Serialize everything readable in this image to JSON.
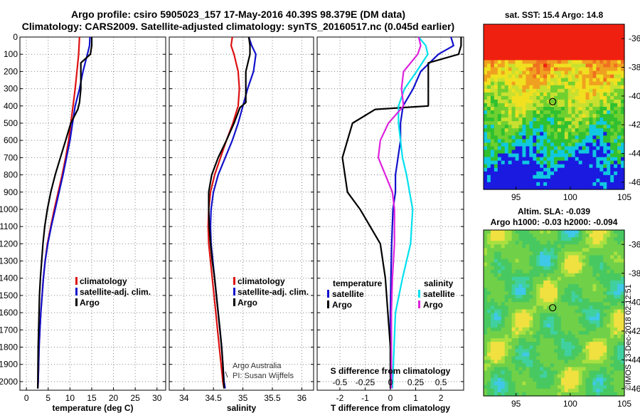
{
  "title_line1": "Argo profile: csiro 5905023_157 17-May-2016 40.39S 98.379E (DM data)",
  "title_line2": "Climatology: CARS2009. Satellite-adjusted climatology: synTS_20160517.nc (0.045d earlier)",
  "stamp": "©IMOS 13-Dec-2018 02:12:51",
  "colors": {
    "clim": "#dd1111",
    "sat": "#1111cc",
    "argo": "#000000",
    "sal_sat": "#00e0ee",
    "sal_diff": "#dd22dd",
    "grid": "#888888"
  },
  "chart_data": [
    {
      "type": "line",
      "name": "temperature-profile",
      "xlabel": "temperature (deg C)",
      "ylabel": "depth",
      "xlim": [
        -1.5,
        32
      ],
      "ylim": [
        2050,
        0
      ],
      "xticks": [
        0,
        5,
        10,
        15,
        20,
        25,
        30
      ],
      "yticks": [
        0,
        100,
        200,
        300,
        400,
        500,
        600,
        700,
        800,
        900,
        1000,
        1100,
        1200,
        1300,
        1400,
        1500,
        1600,
        1700,
        1800,
        1900,
        2000
      ],
      "legend": [
        "climatology",
        "satellite-adj. clim.",
        "Argo"
      ],
      "series": [
        {
          "name": "climatology",
          "x": [
            12.2,
            12.1,
            12.0,
            11.6,
            11.2,
            10.7,
            10.2,
            9.7,
            9.0,
            8.2,
            7.3,
            6.4,
            5.6,
            4.8,
            4.3,
            3.9,
            3.6,
            3.3,
            3.1,
            2.9,
            2.8,
            2.7,
            2.6
          ],
          "y": [
            0,
            50,
            100,
            200,
            300,
            400,
            500,
            600,
            700,
            800,
            900,
            1000,
            1100,
            1200,
            1300,
            1400,
            1500,
            1600,
            1700,
            1800,
            1900,
            2000,
            2040
          ]
        },
        {
          "name": "satellite-adj. clim.",
          "x": [
            14.6,
            14.5,
            14.0,
            13.0,
            12.2,
            11.2,
            10.6,
            10.0,
            9.2,
            8.4,
            7.5,
            6.6,
            5.7,
            4.9,
            4.3,
            3.9,
            3.6,
            3.3,
            3.1,
            2.9,
            2.8,
            2.7,
            2.6
          ],
          "y": [
            0,
            50,
            100,
            200,
            300,
            400,
            500,
            600,
            700,
            800,
            900,
            1000,
            1100,
            1200,
            1300,
            1400,
            1500,
            1600,
            1700,
            1800,
            1900,
            2000,
            2040
          ]
        },
        {
          "name": "Argo",
          "x": [
            15.0,
            15.0,
            14.7,
            12.5,
            12.5,
            12.2,
            12.0,
            11.8,
            10.2,
            9.0,
            7.8,
            6.6,
            5.6,
            4.8,
            4.2,
            3.8,
            3.5,
            3.2,
            3.0,
            2.9,
            2.8,
            2.7,
            2.6
          ],
          "y": [
            0,
            50,
            100,
            150,
            300,
            380,
            400,
            420,
            500,
            600,
            700,
            800,
            900,
            1000,
            1100,
            1200,
            1300,
            1400,
            1500,
            1600,
            1700,
            1800,
            2040
          ]
        }
      ]
    },
    {
      "type": "line",
      "name": "salinity-profile",
      "xlabel": "salinity",
      "ylabel": "depth",
      "xlim": [
        33.75,
        36.2
      ],
      "ylim": [
        2050,
        0
      ],
      "xticks": [
        34,
        34.5,
        35,
        35.5,
        36
      ],
      "legend": [
        "climatology",
        "satellite-adj. clim.",
        "Argo"
      ],
      "annotations": [
        "Argo Australia",
        "PI: Susan Wijffels"
      ],
      "series": [
        {
          "name": "climatology",
          "x": [
            34.82,
            34.8,
            34.85,
            34.92,
            34.94,
            34.92,
            34.83,
            34.72,
            34.62,
            34.52,
            34.45,
            34.42,
            34.41,
            34.42,
            34.45,
            34.48,
            34.51,
            34.54,
            34.57,
            34.6,
            34.63,
            34.66,
            34.68
          ],
          "y": [
            0,
            50,
            100,
            200,
            300,
            400,
            500,
            600,
            700,
            800,
            900,
            1000,
            1100,
            1200,
            1300,
            1400,
            1500,
            1600,
            1700,
            1800,
            1900,
            2000,
            2040
          ]
        },
        {
          "name": "satellite-adj. clim.",
          "x": [
            35.1,
            35.15,
            35.22,
            35.18,
            35.08,
            35.0,
            34.92,
            34.82,
            34.7,
            34.58,
            34.5,
            34.46,
            34.45,
            34.46,
            34.49,
            34.52,
            34.55,
            34.58,
            34.61,
            34.64,
            34.66,
            34.68,
            34.7
          ],
          "y": [
            0,
            50,
            100,
            200,
            300,
            400,
            500,
            600,
            700,
            800,
            900,
            1000,
            1100,
            1200,
            1300,
            1400,
            1500,
            1600,
            1700,
            1800,
            1900,
            2000,
            2040
          ]
        },
        {
          "name": "Argo",
          "x": [
            35.1,
            35.12,
            35.12,
            35.05,
            35.05,
            35.05,
            34.95,
            34.85,
            34.72,
            34.58,
            34.47,
            34.42,
            34.42,
            34.43,
            34.45,
            34.48,
            34.52,
            34.55,
            34.58,
            34.61,
            34.64,
            34.66,
            34.68
          ],
          "y": [
            0,
            50,
            100,
            200,
            300,
            380,
            410,
            500,
            600,
            700,
            800,
            900,
            1000,
            1100,
            1200,
            1300,
            1400,
            1500,
            1600,
            1700,
            1800,
            1900,
            2040
          ]
        }
      ]
    },
    {
      "type": "line",
      "name": "difference-profile",
      "xlabel": "T difference from climatology",
      "ylabel": "depth",
      "xlim": [
        -2.9,
        2.9
      ],
      "ylim": [
        2050,
        0
      ],
      "xticks": [
        -2,
        -1,
        0,
        1,
        2
      ],
      "secondary_axis_label": "S difference from climatology",
      "secondary_ticks": [
        "-0.5",
        "-0.25",
        "0",
        "0.25",
        "0.5"
      ],
      "legend_temperature_title": "temperature",
      "legend_salinity_title": "salinity",
      "legend": [
        "satellite",
        "Argo",
        "satellite",
        "Argo"
      ],
      "series": [
        {
          "name": "temperature satellite",
          "x": [
            2.4,
            2.5,
            1.9,
            1.2,
            0.9,
            0.5,
            0.4,
            0.4,
            0.3,
            0.2,
            0.2,
            0.1,
            0.05,
            0.02,
            0.0,
            0.0,
            0.0
          ],
          "y": [
            0,
            50,
            100,
            200,
            300,
            400,
            500,
            600,
            700,
            800,
            900,
            1000,
            1200,
            1400,
            1600,
            1800,
            2040
          ]
        },
        {
          "name": "temperature Argo",
          "x": [
            2.8,
            2.8,
            2.7,
            1.5,
            1.5,
            1.5,
            -0.6,
            -1.5,
            -1.9,
            -1.7,
            -1.2,
            -0.8,
            -0.4,
            -0.2,
            -0.1,
            0.0,
            0.0
          ],
          "y": [
            0,
            50,
            100,
            150,
            300,
            400,
            420,
            500,
            700,
            900,
            1000,
            1100,
            1200,
            1400,
            1600,
            1800,
            2040
          ]
        },
        {
          "name": "salinity satellite",
          "x": [
            0.28,
            0.35,
            0.37,
            0.26,
            0.14,
            0.08,
            0.08,
            0.1,
            0.12,
            0.16,
            0.19,
            0.22,
            0.2,
            0.12,
            0.05,
            0.02
          ],
          "y": [
            0,
            50,
            100,
            200,
            300,
            400,
            500,
            600,
            700,
            800,
            900,
            1000,
            1200,
            1400,
            1600,
            2040
          ]
        },
        {
          "name": "salinity Argo",
          "x": [
            0.28,
            0.3,
            0.27,
            0.13,
            0.11,
            0.13,
            -0.02,
            -0.1,
            -0.12,
            -0.05,
            0.02,
            0.04,
            0.04,
            0.02,
            0.01,
            0.01
          ],
          "y": [
            0,
            50,
            100,
            200,
            300,
            400,
            500,
            600,
            700,
            800,
            900,
            1000,
            1200,
            1400,
            1600,
            2040
          ]
        }
      ]
    },
    {
      "type": "heatmap",
      "name": "sst-map",
      "title": "sat. SST: 15.4 Argo: 14.8",
      "xlim": [
        92,
        105
      ],
      "ylim": [
        -46.5,
        -35
      ],
      "xticks": [
        95,
        100,
        105
      ],
      "yticks": [
        -36,
        -38,
        -40,
        -42,
        -44,
        -46
      ],
      "marker": {
        "lon": 98.379,
        "lat": -40.39
      }
    },
    {
      "type": "heatmap",
      "name": "sla-map",
      "title1": "Altim. SLA: -0.039",
      "title2": "Argo h1000: -0.03 h2000: -0.094",
      "xlim": [
        92,
        105
      ],
      "ylim": [
        -46.5,
        -35
      ],
      "xticks": [
        95,
        100,
        105
      ],
      "yticks": [
        -36,
        -38,
        -40,
        -42,
        -44,
        -46
      ],
      "marker": {
        "lon": 98.379,
        "lat": -40.39
      }
    }
  ]
}
